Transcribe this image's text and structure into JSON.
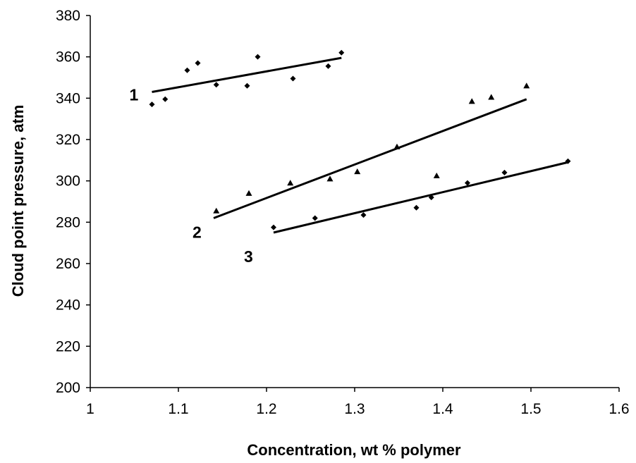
{
  "chart_data": {
    "type": "scatter",
    "xlabel": "Concentration, wt % polymer",
    "ylabel": "Cloud point pressure, atm",
    "xlim": [
      1,
      1.6
    ],
    "ylim": [
      200,
      380
    ],
    "x_ticks": [
      "1",
      "1.1",
      "1.2",
      "1.3",
      "1.4",
      "1.5",
      "1.6"
    ],
    "y_ticks": [
      "200",
      "220",
      "240",
      "260",
      "280",
      "300",
      "320",
      "340",
      "360",
      "380"
    ],
    "grid": false,
    "legend": "none",
    "series": [
      {
        "name": "1",
        "marker": "diamond",
        "points": [
          [
            1.07,
            337
          ],
          [
            1.085,
            339.5
          ],
          [
            1.11,
            353.5
          ],
          [
            1.122,
            357
          ],
          [
            1.143,
            346.5
          ],
          [
            1.178,
            346
          ],
          [
            1.19,
            360
          ],
          [
            1.23,
            349.5
          ],
          [
            1.27,
            355.5
          ],
          [
            1.285,
            362
          ]
        ],
        "trendline": [
          [
            1.07,
            343
          ],
          [
            1.285,
            359.5
          ]
        ]
      },
      {
        "name": "2",
        "marker": "triangle",
        "points": [
          [
            1.143,
            285.5
          ],
          [
            1.18,
            294
          ],
          [
            1.227,
            299
          ],
          [
            1.272,
            301
          ],
          [
            1.303,
            304.5
          ],
          [
            1.348,
            316.5
          ],
          [
            1.393,
            302.5
          ],
          [
            1.433,
            338.5
          ],
          [
            1.455,
            340.5
          ],
          [
            1.495,
            346
          ]
        ],
        "trendline": [
          [
            1.14,
            282
          ],
          [
            1.495,
            339.5
          ]
        ]
      },
      {
        "name": "3",
        "marker": "diamond",
        "points": [
          [
            1.208,
            277.5
          ],
          [
            1.255,
            282
          ],
          [
            1.31,
            283.5
          ],
          [
            1.37,
            287
          ],
          [
            1.387,
            292
          ],
          [
            1.428,
            299
          ],
          [
            1.47,
            304
          ],
          [
            1.542,
            309.5
          ]
        ],
        "trendline": [
          [
            1.208,
            275
          ],
          [
            1.542,
            309
          ]
        ]
      }
    ]
  }
}
